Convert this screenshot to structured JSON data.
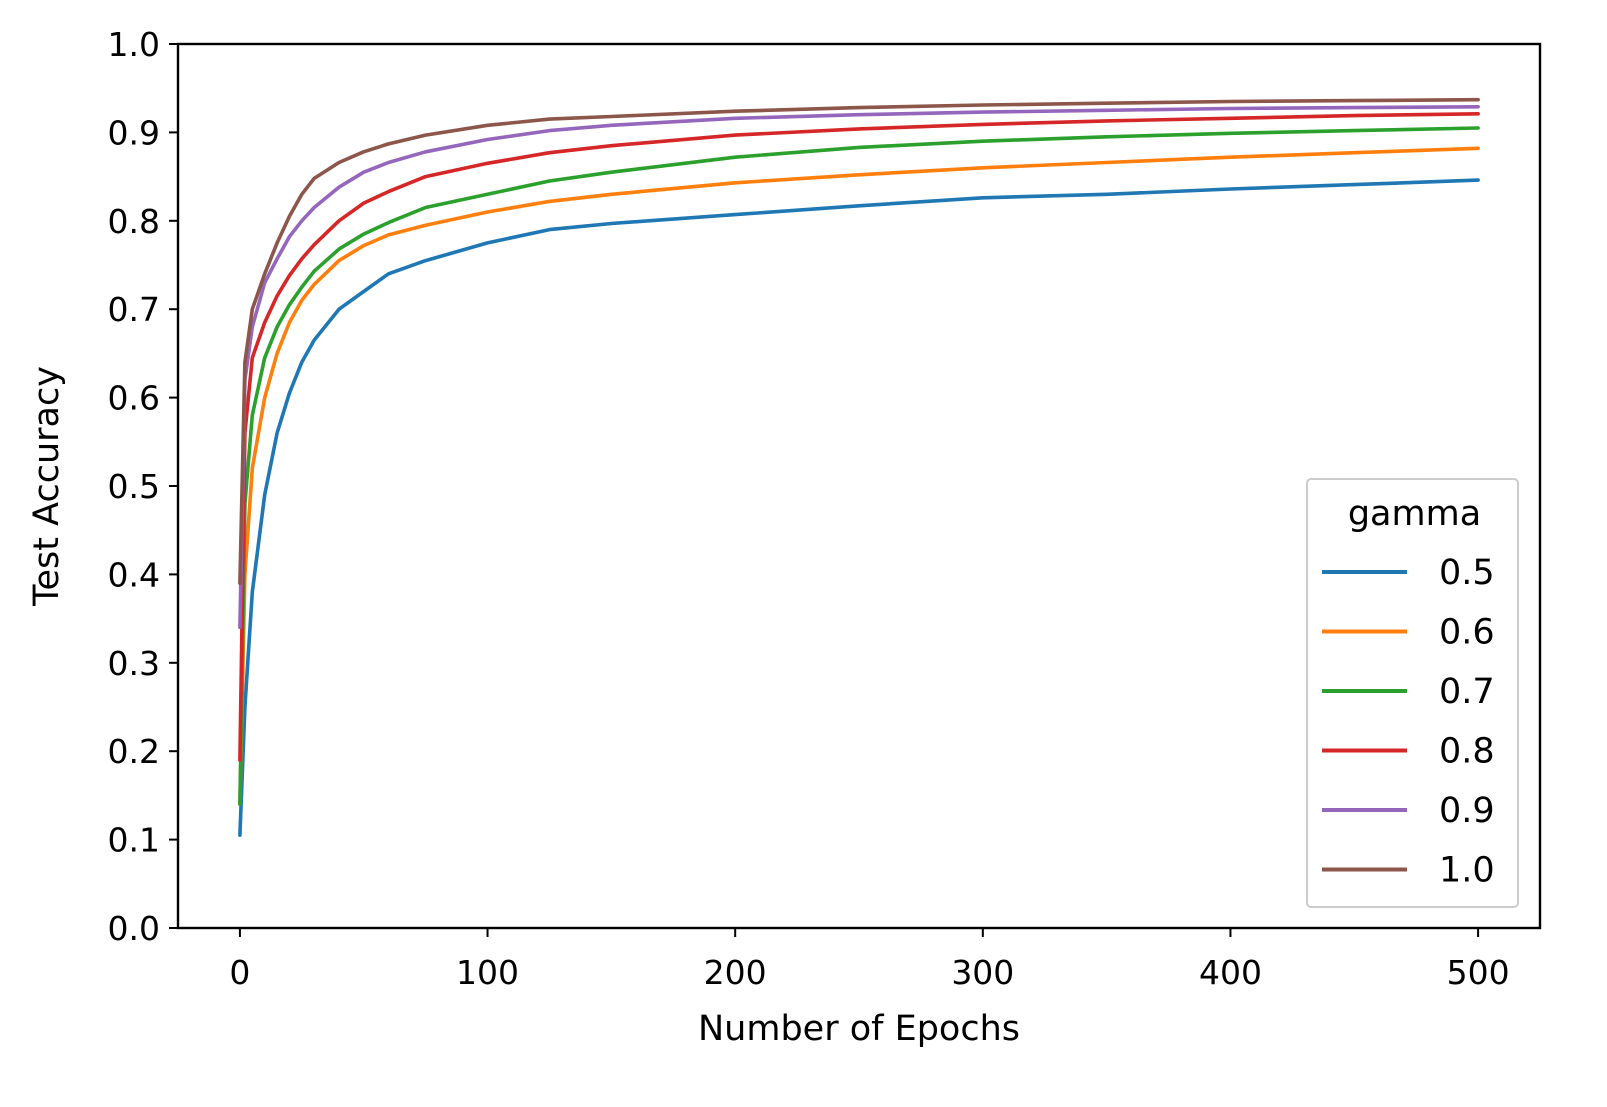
{
  "chart_data": {
    "type": "line",
    "title": "",
    "xlabel": "Number of Epochs",
    "ylabel": "Test Accuracy",
    "xlim": [
      -25,
      525
    ],
    "ylim": [
      0.0,
      1.0
    ],
    "xticks": [
      0,
      100,
      200,
      300,
      400,
      500
    ],
    "xtick_labels": [
      "0",
      "100",
      "200",
      "300",
      "400",
      "500"
    ],
    "yticks": [
      0.0,
      0.1,
      0.2,
      0.3,
      0.4,
      0.5,
      0.6,
      0.7,
      0.8,
      0.9,
      1.0
    ],
    "ytick_labels": [
      "0.0",
      "0.1",
      "0.2",
      "0.3",
      "0.4",
      "0.5",
      "0.6",
      "0.7",
      "0.8",
      "0.9",
      "1.0"
    ],
    "grid": false,
    "legend": {
      "title": "gamma",
      "placement": "lower-right"
    },
    "x": [
      0,
      2,
      5,
      10,
      15,
      20,
      25,
      30,
      40,
      50,
      60,
      75,
      100,
      125,
      150,
      200,
      250,
      300,
      350,
      400,
      450,
      500
    ],
    "series": [
      {
        "name": "0.5",
        "color": "#1f77b4",
        "values": [
          0.105,
          0.25,
          0.38,
          0.49,
          0.56,
          0.605,
          0.64,
          0.665,
          0.7,
          0.72,
          0.74,
          0.755,
          0.775,
          0.79,
          0.797,
          0.807,
          0.817,
          0.826,
          0.83,
          0.836,
          0.841,
          0.846
        ]
      },
      {
        "name": "0.6",
        "color": "#ff7f0e",
        "values": [
          0.14,
          0.4,
          0.52,
          0.6,
          0.65,
          0.685,
          0.71,
          0.728,
          0.755,
          0.772,
          0.784,
          0.795,
          0.81,
          0.822,
          0.83,
          0.843,
          0.852,
          0.86,
          0.866,
          0.872,
          0.877,
          0.882
        ]
      },
      {
        "name": "0.7",
        "color": "#2ca02c",
        "values": [
          0.14,
          0.48,
          0.58,
          0.645,
          0.68,
          0.705,
          0.725,
          0.743,
          0.768,
          0.785,
          0.798,
          0.815,
          0.83,
          0.845,
          0.855,
          0.872,
          0.883,
          0.89,
          0.895,
          0.899,
          0.902,
          0.905
        ]
      },
      {
        "name": "0.8",
        "color": "#d62728",
        "values": [
          0.19,
          0.56,
          0.645,
          0.685,
          0.715,
          0.738,
          0.757,
          0.773,
          0.8,
          0.82,
          0.833,
          0.85,
          0.865,
          0.877,
          0.885,
          0.897,
          0.904,
          0.909,
          0.913,
          0.916,
          0.919,
          0.921
        ]
      },
      {
        "name": "0.9",
        "color": "#9467bd",
        "values": [
          0.34,
          0.62,
          0.68,
          0.73,
          0.757,
          0.782,
          0.8,
          0.815,
          0.838,
          0.855,
          0.866,
          0.878,
          0.892,
          0.902,
          0.908,
          0.916,
          0.92,
          0.923,
          0.925,
          0.927,
          0.928,
          0.929
        ]
      },
      {
        "name": "1.0",
        "color": "#8c564b",
        "values": [
          0.39,
          0.64,
          0.7,
          0.74,
          0.775,
          0.805,
          0.83,
          0.848,
          0.866,
          0.878,
          0.887,
          0.897,
          0.908,
          0.915,
          0.918,
          0.924,
          0.928,
          0.931,
          0.933,
          0.935,
          0.936,
          0.937
        ]
      }
    ]
  }
}
